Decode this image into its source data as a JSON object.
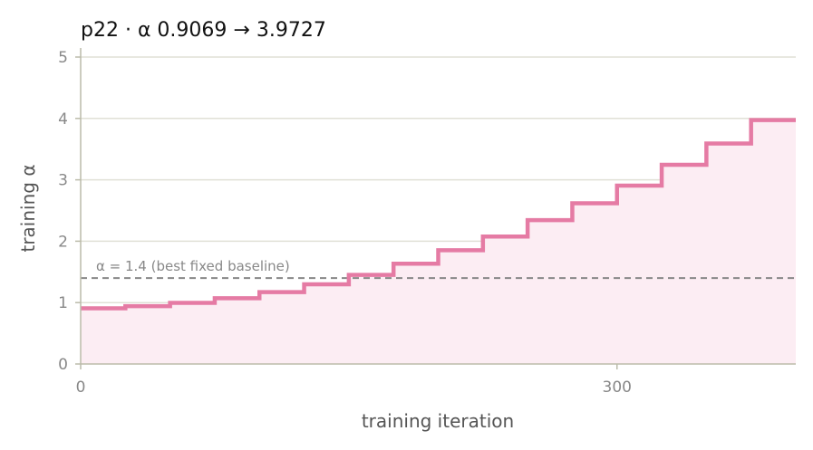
{
  "chart_data": {
    "type": "line",
    "title": "p22   ·   α 0.9069 → 3.9727",
    "xlabel": "training iteration",
    "ylabel": "training α",
    "xlim": [
      0,
      400
    ],
    "ylim": [
      0,
      5
    ],
    "x_ticks": [
      0,
      300
    ],
    "y_ticks": [
      0,
      1,
      2,
      3,
      4,
      5
    ],
    "grid": "horizontal",
    "line_color": "#e57ba4",
    "fill_color": "#fcedf3",
    "step_width": 25,
    "values": [
      0.9069,
      0.9415,
      0.9957,
      1.0714,
      1.1707,
      1.2978,
      1.4509,
      1.6343,
      1.8522,
      2.0755,
      2.3429,
      2.6177,
      2.9048,
      3.2445,
      3.5906,
      3.9727
    ],
    "baseline": {
      "value": 1.4,
      "label": "α = 1.4 (best fixed baseline)",
      "color": "#888888"
    }
  }
}
